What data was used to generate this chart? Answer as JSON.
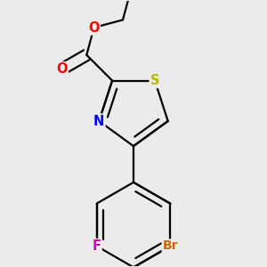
{
  "bg_color": "#ebebeb",
  "bond_color": "#000000",
  "bond_width": 1.6,
  "atom_labels": {
    "S": {
      "color": "#b8b800",
      "fontsize": 10.5
    },
    "N": {
      "color": "#0000ff",
      "fontsize": 10.5
    },
    "O1": {
      "color": "#ff0000",
      "fontsize": 10.5
    },
    "O2": {
      "color": "#ff0000",
      "fontsize": 10.5
    },
    "Br": {
      "color": "#cc6600",
      "fontsize": 10.0
    },
    "F": {
      "color": "#cc00cc",
      "fontsize": 10.5
    }
  }
}
